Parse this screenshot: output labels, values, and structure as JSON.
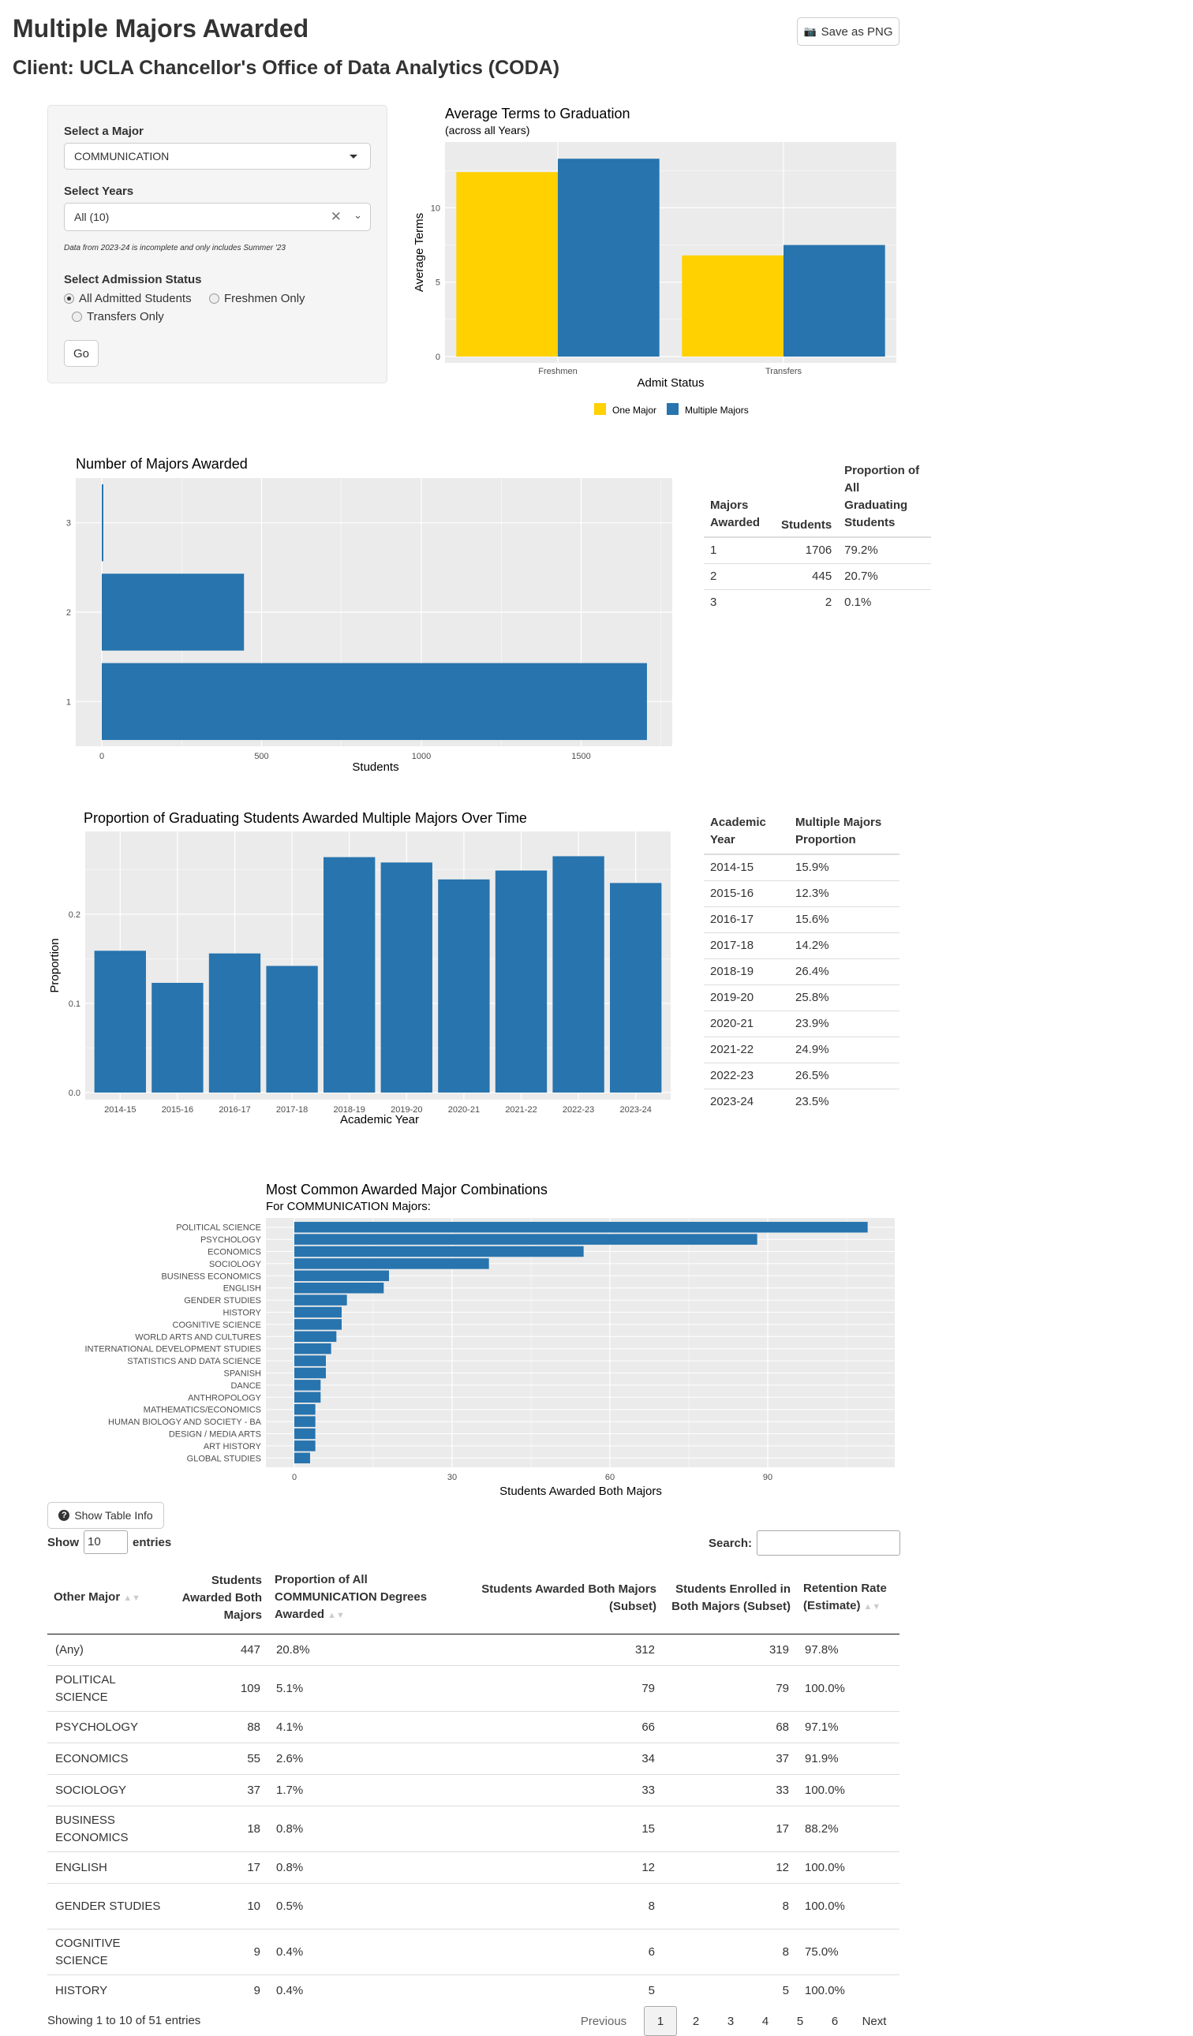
{
  "title": "Multiple Majors Awarded",
  "client": "Client: UCLA Chancellor's Office of Data Analytics (CODA)",
  "save_btn": "Save as PNG",
  "controls": {
    "major_label": "Select a Major",
    "major_value": "COMMUNICATION",
    "years_label": "Select Years",
    "years_value": "All (10)",
    "note": "Data from 2023-24 is incomplete and only includes Summer '23",
    "admission_label": "Select Admission Status",
    "options": [
      "All Admitted Students",
      "Freshmen Only",
      "Transfers Only"
    ],
    "selected_option": "All Admitted Students",
    "go": "Go"
  },
  "chart1": {
    "title": "Average Terms to Graduation",
    "subtitle": "(across all Years)",
    "ylabel": "Average Terms",
    "xlabel": "Admit Status",
    "yticks": [
      "0",
      "5",
      "10"
    ],
    "legend": [
      "One Major",
      "Multiple Majors"
    ]
  },
  "chart2": {
    "title": "Number of Majors Awarded",
    "xlabel": "Students",
    "xticks": [
      "0",
      "500",
      "1000",
      "1500"
    ],
    "yticks": [
      "1",
      "2",
      "3"
    ]
  },
  "table2": {
    "headers": [
      "Majors Awarded",
      "Students",
      "Proportion of All Graduating Students"
    ],
    "rows": [
      [
        "1",
        "1706",
        "79.2%"
      ],
      [
        "2",
        "445",
        "20.7%"
      ],
      [
        "3",
        "2",
        "0.1%"
      ]
    ]
  },
  "chart3": {
    "title": "Proportion of Graduating Students Awarded Multiple Majors Over Time",
    "xlabel": "Academic Year",
    "ylabel": "Proportion",
    "yticks": [
      "0.0",
      "0.1",
      "0.2"
    ]
  },
  "table3": {
    "headers": [
      "Academic Year",
      "Multiple Majors Proportion"
    ],
    "rows": [
      [
        "2014-15",
        "15.9%"
      ],
      [
        "2015-16",
        "12.3%"
      ],
      [
        "2016-17",
        "15.6%"
      ],
      [
        "2017-18",
        "14.2%"
      ],
      [
        "2018-19",
        "26.4%"
      ],
      [
        "2019-20",
        "25.8%"
      ],
      [
        "2020-21",
        "23.9%"
      ],
      [
        "2021-22",
        "24.9%"
      ],
      [
        "2022-23",
        "26.5%"
      ],
      [
        "2023-24",
        "23.5%"
      ]
    ]
  },
  "chart4": {
    "title": "Most Common Awarded Major Combinations",
    "subtitle": "For COMMUNICATION Majors:",
    "xlabel": "Students Awarded Both Majors",
    "xticks": [
      "0",
      "30",
      "60",
      "90"
    ]
  },
  "info_btn": "Show Table Info",
  "dt": {
    "show": "Show",
    "length": "10",
    "entries": "entries",
    "search": "Search:",
    "headers": [
      "Other Major",
      "Students Awarded Both Majors",
      "Proportion of All COMMUNICATION Degrees Awarded",
      "Students Awarded Both Majors (Subset)",
      "Students Enrolled in Both Majors (Subset)",
      "Retention Rate (Estimate)"
    ],
    "rows": [
      [
        "(Any)",
        "447",
        "20.8%",
        "312",
        "319",
        "97.8%"
      ],
      [
        "POLITICAL SCIENCE",
        "109",
        "5.1%",
        "79",
        "79",
        "100.0%"
      ],
      [
        "PSYCHOLOGY",
        "88",
        "4.1%",
        "66",
        "68",
        "97.1%"
      ],
      [
        "ECONOMICS",
        "55",
        "2.6%",
        "34",
        "37",
        "91.9%"
      ],
      [
        "SOCIOLOGY",
        "37",
        "1.7%",
        "33",
        "33",
        "100.0%"
      ],
      [
        "BUSINESS ECONOMICS",
        "18",
        "0.8%",
        "15",
        "17",
        "88.2%"
      ],
      [
        "ENGLISH",
        "17",
        "0.8%",
        "12",
        "12",
        "100.0%"
      ],
      [
        "GENDER STUDIES",
        "10",
        "0.5%",
        "8",
        "8",
        "100.0%"
      ],
      [
        "COGNITIVE SCIENCE",
        "9",
        "0.4%",
        "6",
        "8",
        "75.0%"
      ],
      [
        "HISTORY",
        "9",
        "0.4%",
        "5",
        "5",
        "100.0%"
      ]
    ],
    "info": "Showing 1 to 10 of 51 entries",
    "prev": "Previous",
    "pages": [
      "1",
      "2",
      "3",
      "4",
      "5",
      "6"
    ],
    "next": "Next"
  },
  "colors": {
    "one": "#FFD100",
    "multi": "#2774AE",
    "panel_bg": "#EBEBEB",
    "grid": "#FFFFFF"
  },
  "chart_data": [
    {
      "type": "bar",
      "title": "Average Terms to Graduation",
      "subtitle": "(across all Years)",
      "categories": [
        "Freshmen",
        "Transfers"
      ],
      "series": [
        {
          "name": "One Major",
          "values": [
            12.4,
            6.8
          ]
        },
        {
          "name": "Multiple Majors",
          "values": [
            13.3,
            7.5
          ]
        }
      ],
      "xlabel": "Admit Status",
      "ylabel": "Average Terms",
      "ylim": [
        0,
        14
      ],
      "legend": "bottom"
    },
    {
      "type": "bar",
      "orientation": "horizontal",
      "title": "Number of Majors Awarded",
      "categories": [
        "1",
        "2",
        "3"
      ],
      "values": [
        1706,
        445,
        2
      ],
      "xlabel": "Students",
      "xlim": [
        0,
        1800
      ]
    },
    {
      "type": "bar",
      "title": "Proportion of Graduating Students Awarded Multiple Majors Over Time",
      "categories": [
        "2014-15",
        "2015-16",
        "2016-17",
        "2017-18",
        "2018-19",
        "2019-20",
        "2020-21",
        "2021-22",
        "2022-23",
        "2023-24"
      ],
      "values": [
        0.159,
        0.123,
        0.156,
        0.142,
        0.264,
        0.258,
        0.239,
        0.249,
        0.265,
        0.235
      ],
      "xlabel": "Academic Year",
      "ylabel": "Proportion",
      "ylim": [
        0,
        0.28
      ]
    },
    {
      "type": "bar",
      "orientation": "horizontal",
      "title": "Most Common Awarded Major Combinations",
      "subtitle": "For COMMUNICATION Majors:",
      "categories": [
        "POLITICAL SCIENCE",
        "PSYCHOLOGY",
        "ECONOMICS",
        "SOCIOLOGY",
        "BUSINESS ECONOMICS",
        "ENGLISH",
        "GENDER STUDIES",
        "HISTORY",
        "COGNITIVE SCIENCE",
        "WORLD ARTS AND CULTURES",
        "INTERNATIONAL DEVELOPMENT STUDIES",
        "STATISTICS AND DATA SCIENCE",
        "SPANISH",
        "DANCE",
        "ANTHROPOLOGY",
        "MATHEMATICS/ECONOMICS",
        "HUMAN BIOLOGY AND SOCIETY - BA",
        "DESIGN / MEDIA ARTS",
        "ART HISTORY",
        "GLOBAL STUDIES"
      ],
      "values": [
        109,
        88,
        55,
        37,
        18,
        17,
        10,
        9,
        9,
        8,
        7,
        6,
        6,
        5,
        5,
        4,
        4,
        4,
        4,
        3
      ],
      "xlabel": "Students Awarded Both Majors",
      "xlim": [
        0,
        115
      ]
    }
  ]
}
